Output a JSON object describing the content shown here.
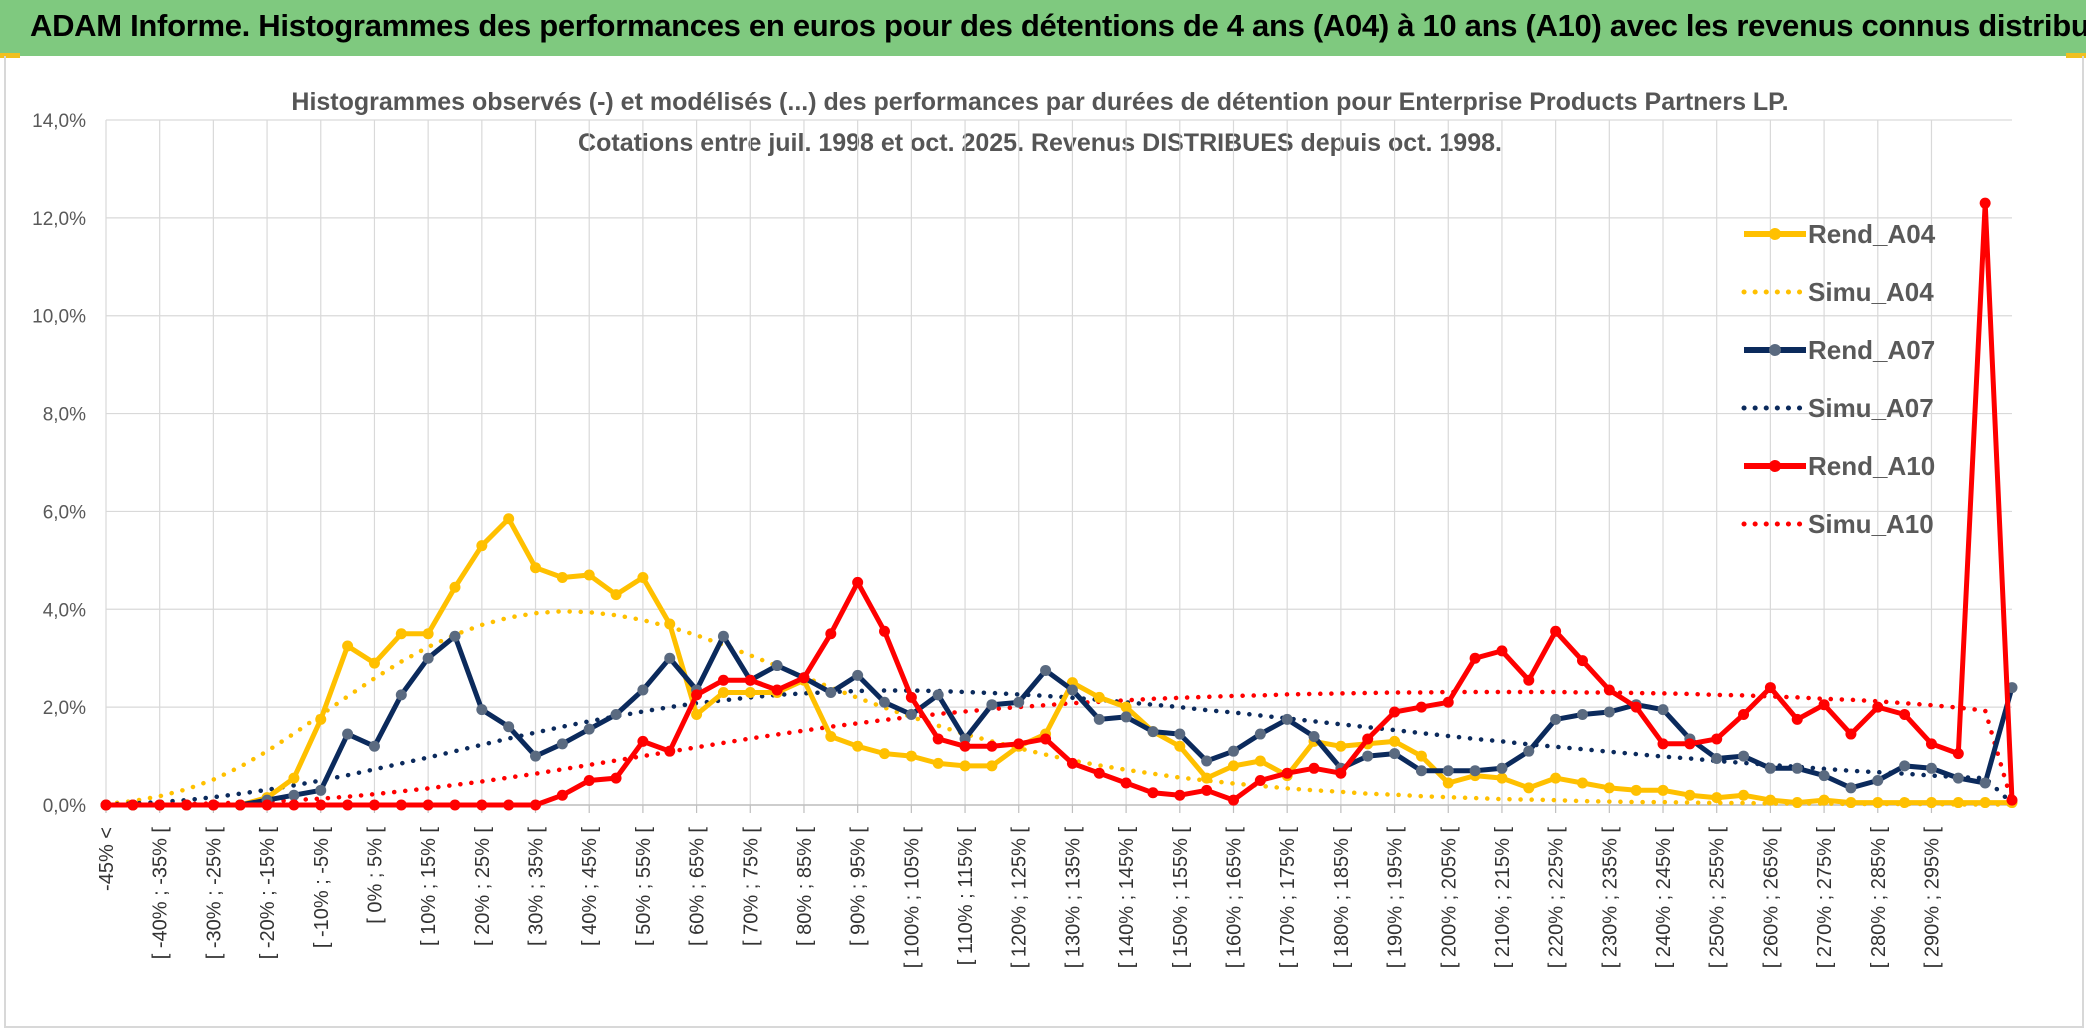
{
  "header": {
    "title": "ADAM Informe. Histogrammes des performances en euros pour des détentions de 4 ans (A04) à 10 ans (A10) avec les revenus connus distribués"
  },
  "colors": {
    "header_bg": "#7fc97f",
    "A04": "#ffc000",
    "A07": "#0b2a5c",
    "A07_marker": "#5a6a80",
    "A10": "#ff0000",
    "grid": "#d9d9d9"
  },
  "chart_data": {
    "type": "line",
    "title_lines": [
      "Histogrammes observés (-) et modélisés (...) des performances par durées de détention pour Enterprise Products Partners LP.",
      "Cotations entre juil. 1998 et oct. 2025. Revenus DISTRIBUES depuis oct. 1998."
    ],
    "ylim": [
      0,
      14
    ],
    "yticks": [
      "0,0%",
      "2,0%",
      "4,0%",
      "6,0%",
      "8,0%",
      "10,0%",
      "12,0%",
      "14,0%"
    ],
    "grid": true,
    "legend_position": "right",
    "x_labels": [
      "-45% <",
      "[ -40% ; -35% [",
      "[ -30% ; -25% [",
      "[ -20% ; -15% [",
      "[ -10% ; -5% [",
      "[ 0% ; 5% [",
      "[ 10% ; 15% [",
      "[ 20% ; 25% [",
      "[ 30% ; 35% [",
      "[ 40% ; 45% [",
      "[ 50% ; 55% [",
      "[ 60% ; 65% [",
      "[ 70% ; 75% [",
      "[ 80% ; 85% [",
      "[ 90% ; 95% [",
      "[ 100% ; 105% [",
      "[ 110% ; 115% [",
      "[ 120% ; 125% [",
      "[ 130% ; 135% [",
      "[ 140% ; 145% [",
      "[ 150% ; 155% [",
      "[ 160% ; 165% [",
      "[ 170% ; 175% [",
      "[ 180% ; 185% [",
      "[ 190% ; 195% [",
      "[ 200% ; 205% [",
      "[ 210% ; 215% [",
      "[ 220% ; 225% [",
      "[ 230% ; 235% [",
      "[ 240% ; 245% [",
      "[ 250% ; 255% [",
      "[ 260% ; 265% [",
      "[ 270% ; 275% [",
      "[ 280% ; 285% [",
      "[ 290% ; 295% ["
    ],
    "series": [
      {
        "name": "Rend_A04",
        "style": "solid",
        "color": "#ffc000",
        "values": [
          0,
          0,
          0,
          0,
          0,
          0,
          0.15,
          0.55,
          1.75,
          3.25,
          2.9,
          3.5,
          3.5,
          4.45,
          5.3,
          5.85,
          4.85,
          4.65,
          4.7,
          4.3,
          4.65,
          3.7,
          1.85,
          2.3,
          2.3,
          2.3,
          2.55,
          1.4,
          1.2,
          1.05,
          1.0,
          0.85,
          0.8,
          0.8,
          1.2,
          1.45,
          2.5,
          2.2,
          2.0,
          1.5,
          1.2,
          0.55,
          0.8,
          0.9,
          0.6,
          1.3,
          1.2,
          1.25,
          1.3,
          1.0,
          0.45,
          0.6,
          0.55,
          0.35,
          0.55,
          0.45,
          0.35,
          0.3,
          0.3,
          0.2,
          0.15,
          0.2,
          0.1,
          0.05,
          0.1,
          0.05,
          0.05,
          0.05,
          0.05,
          0.05,
          0.05,
          0.05
        ]
      },
      {
        "name": "Simu_A04",
        "style": "dotted",
        "color": "#ffc000",
        "values": [
          0.02,
          0.08,
          0.18,
          0.32,
          0.52,
          0.78,
          1.1,
          1.46,
          1.84,
          2.22,
          2.59,
          2.93,
          3.23,
          3.48,
          3.68,
          3.83,
          3.92,
          3.96,
          3.94,
          3.88,
          3.78,
          3.64,
          3.47,
          3.27,
          3.06,
          2.84,
          2.62,
          2.4,
          2.19,
          1.99,
          1.8,
          1.62,
          1.45,
          1.3,
          1.16,
          1.03,
          0.91,
          0.81,
          0.72,
          0.64,
          0.56,
          0.5,
          0.44,
          0.39,
          0.34,
          0.3,
          0.27,
          0.23,
          0.21,
          0.18,
          0.16,
          0.14,
          0.12,
          0.11,
          0.1,
          0.08,
          0.07,
          0.06,
          0.06,
          0.05,
          0.04,
          0.04,
          0.03,
          0.03,
          0.03,
          0.02,
          0.02,
          0.02,
          0.02,
          0.01,
          0.01,
          0.01
        ]
      },
      {
        "name": "Rend_A07",
        "style": "solid",
        "color": "#0b2a5c",
        "values": [
          0,
          0,
          0,
          0,
          0,
          0,
          0.1,
          0.2,
          0.3,
          1.45,
          1.2,
          2.25,
          3.0,
          3.45,
          1.95,
          1.6,
          1.0,
          1.25,
          1.55,
          1.85,
          2.35,
          3.0,
          2.35,
          3.45,
          2.55,
          2.85,
          2.6,
          2.3,
          2.65,
          2.1,
          1.85,
          2.25,
          1.35,
          2.05,
          2.1,
          2.75,
          2.35,
          1.75,
          1.8,
          1.5,
          1.45,
          0.9,
          1.1,
          1.45,
          1.75,
          1.4,
          0.75,
          1.0,
          1.05,
          0.7,
          0.7,
          0.7,
          0.75,
          1.1,
          1.75,
          1.85,
          1.9,
          2.05,
          1.95,
          1.35,
          0.95,
          1.0,
          0.75,
          0.75,
          0.6,
          0.35,
          0.5,
          0.8,
          0.75,
          0.55,
          0.45,
          2.4
        ]
      },
      {
        "name": "Simu_A07",
        "style": "dotted",
        "color": "#0b2a5c",
        "values": [
          0.01,
          0.03,
          0.06,
          0.1,
          0.16,
          0.23,
          0.31,
          0.4,
          0.5,
          0.61,
          0.73,
          0.85,
          0.97,
          1.1,
          1.23,
          1.36,
          1.48,
          1.6,
          1.71,
          1.81,
          1.91,
          2.0,
          2.08,
          2.14,
          2.2,
          2.25,
          2.28,
          2.31,
          2.33,
          2.34,
          2.34,
          2.33,
          2.31,
          2.29,
          2.26,
          2.23,
          2.19,
          2.15,
          2.1,
          2.05,
          2.0,
          1.94,
          1.89,
          1.83,
          1.77,
          1.71,
          1.65,
          1.59,
          1.53,
          1.47,
          1.41,
          1.35,
          1.3,
          1.24,
          1.19,
          1.14,
          1.09,
          1.04,
          0.99,
          0.95,
          0.9,
          0.86,
          0.82,
          0.78,
          0.74,
          0.7,
          0.67,
          0.64,
          0.6,
          0.57,
          0.55,
          0.03
        ]
      },
      {
        "name": "Rend_A10",
        "style": "solid",
        "color": "#ff0000",
        "values": [
          0,
          0,
          0,
          0,
          0,
          0,
          0,
          0,
          0,
          0,
          0,
          0,
          0,
          0,
          0,
          0,
          0,
          0.2,
          0.5,
          0.55,
          1.3,
          1.1,
          2.25,
          2.55,
          2.55,
          2.35,
          2.6,
          3.5,
          4.55,
          3.55,
          2.2,
          1.35,
          1.2,
          1.2,
          1.25,
          1.35,
          0.85,
          0.65,
          0.45,
          0.25,
          0.2,
          0.3,
          0.1,
          0.5,
          0.65,
          0.75,
          0.65,
          1.35,
          1.9,
          2.0,
          2.1,
          3.0,
          3.15,
          2.55,
          3.55,
          2.95,
          2.35,
          2.0,
          1.25,
          1.25,
          1.35,
          1.85,
          2.4,
          1.75,
          2.05,
          1.45,
          2.0,
          1.85,
          1.25,
          1.05,
          12.3,
          0.1
        ]
      },
      {
        "name": "Simu_A10",
        "style": "dotted",
        "color": "#ff0000",
        "values": [
          0,
          0.01,
          0.01,
          0.02,
          0.03,
          0.05,
          0.07,
          0.1,
          0.13,
          0.17,
          0.22,
          0.28,
          0.34,
          0.41,
          0.48,
          0.56,
          0.64,
          0.73,
          0.82,
          0.91,
          1.0,
          1.09,
          1.18,
          1.27,
          1.36,
          1.44,
          1.52,
          1.6,
          1.67,
          1.74,
          1.8,
          1.86,
          1.91,
          1.96,
          2.0,
          2.04,
          2.08,
          2.11,
          2.14,
          2.17,
          2.19,
          2.21,
          2.23,
          2.24,
          2.26,
          2.27,
          2.28,
          2.29,
          2.3,
          2.3,
          2.31,
          2.31,
          2.31,
          2.31,
          2.31,
          2.3,
          2.3,
          2.29,
          2.28,
          2.27,
          2.25,
          2.24,
          2.22,
          2.2,
          2.17,
          2.15,
          2.12,
          2.08,
          2.04,
          1.99,
          1.93,
          0.05
        ]
      }
    ]
  }
}
